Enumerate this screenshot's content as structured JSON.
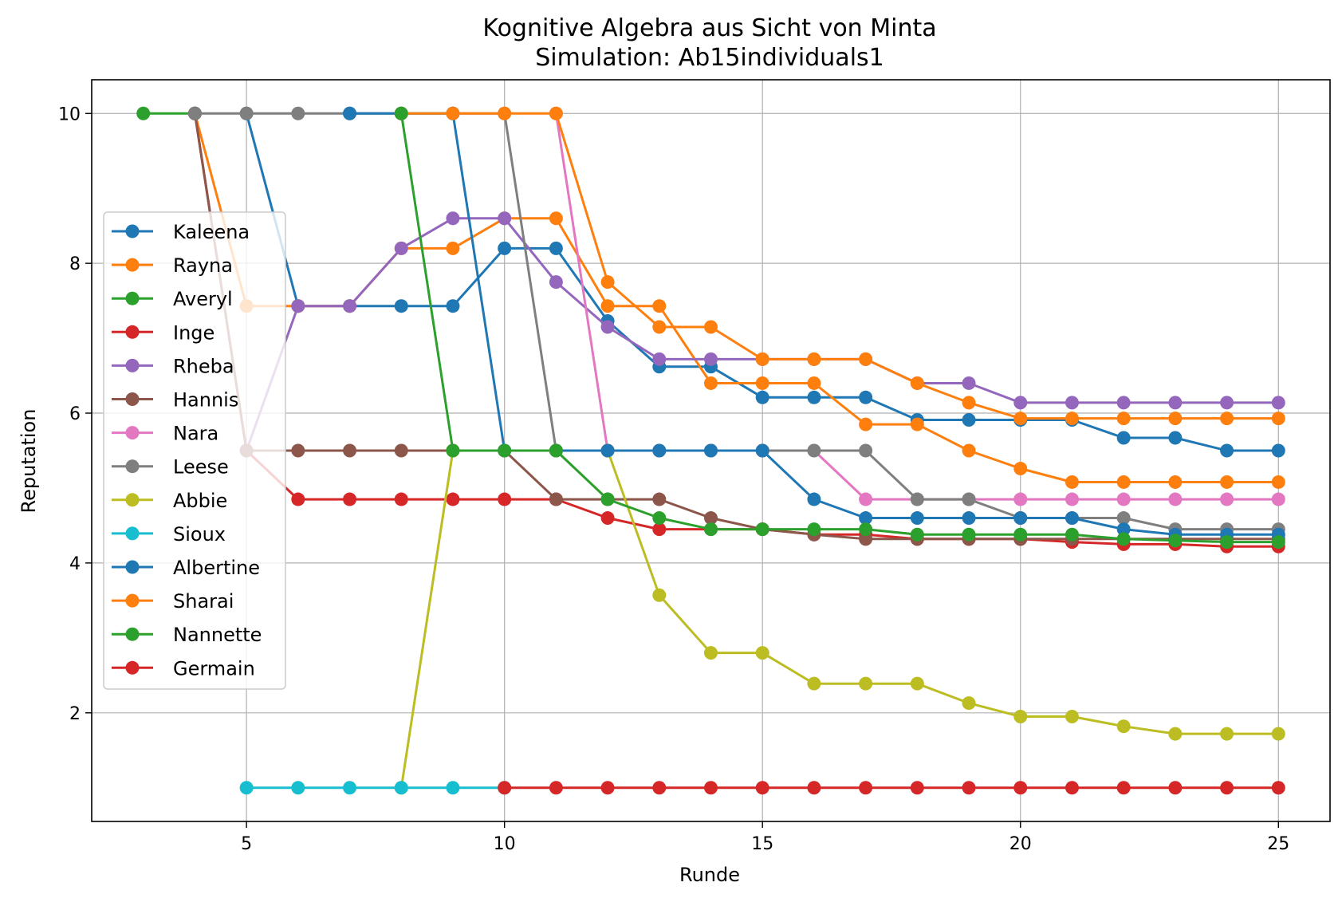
{
  "chart_data": {
    "type": "line",
    "title": "Kognitive Algebra aus Sicht von Minta",
    "subtitle": "Simulation: Ab15individuals1",
    "xlabel": "Runde",
    "ylabel": "Reputation",
    "xlim": [
      2,
      26
    ],
    "ylim": [
      0.55,
      10.45
    ],
    "xticks": [
      5,
      10,
      15,
      20,
      25
    ],
    "yticks": [
      2,
      4,
      6,
      8,
      10
    ],
    "grid": true,
    "legend_position": "center-left",
    "series": [
      {
        "name": "Kaleena",
        "color": "#1f77b4",
        "x": [
          5,
          6,
          7,
          8,
          9,
          10,
          11,
          12,
          13,
          14,
          15,
          16,
          17,
          18,
          19,
          20,
          21,
          22,
          23,
          24,
          25
        ],
        "y": [
          10,
          7.43,
          7.43,
          7.43,
          7.43,
          8.2,
          8.2,
          7.23,
          6.62,
          6.62,
          6.21,
          6.21,
          6.21,
          5.91,
          5.91,
          5.91,
          5.91,
          5.67,
          5.67,
          5.5,
          5.5
        ]
      },
      {
        "name": "Rayna",
        "color": "#ff7f0e",
        "x": [
          4,
          5,
          6,
          7,
          8,
          9,
          10,
          11,
          12,
          13,
          14,
          15,
          16,
          17,
          18,
          19,
          20,
          21,
          22,
          23,
          24,
          25
        ],
        "y": [
          10,
          7.43,
          7.43,
          7.43,
          8.2,
          8.2,
          8.6,
          8.6,
          7.43,
          7.43,
          6.4,
          6.4,
          6.4,
          5.85,
          5.85,
          5.5,
          5.26,
          5.08,
          5.08,
          5.08,
          5.08,
          5.08
        ]
      },
      {
        "name": "Averyl",
        "color": "#2ca02c",
        "x": [
          3,
          4
        ],
        "y": [
          10,
          10
        ]
      },
      {
        "name": "Inge",
        "color": "#d62728",
        "x": [
          4,
          5,
          6,
          7,
          8,
          9,
          10,
          11,
          12,
          13,
          14,
          15,
          16,
          17,
          18,
          19,
          20,
          21,
          22,
          23,
          24,
          25
        ],
        "y": [
          10,
          5.5,
          4.85,
          4.85,
          4.85,
          4.85,
          4.85,
          4.85,
          4.6,
          4.45,
          4.45,
          4.45,
          4.38,
          4.38,
          4.32,
          4.32,
          4.32,
          4.28,
          4.25,
          4.25,
          4.22,
          4.22
        ]
      },
      {
        "name": "Rheba",
        "color": "#9467bd",
        "x": [
          5,
          6,
          7,
          8,
          9,
          10,
          11,
          12,
          13,
          14,
          15,
          16,
          17,
          18,
          19,
          20,
          21,
          22,
          23,
          24,
          25
        ],
        "y": [
          5.5,
          7.43,
          7.43,
          8.2,
          8.6,
          8.6,
          7.75,
          7.15,
          6.72,
          6.72,
          6.72,
          6.72,
          6.72,
          6.4,
          6.4,
          6.14,
          6.14,
          6.14,
          6.14,
          6.14,
          6.14
        ]
      },
      {
        "name": "Hannis",
        "color": "#8c564b",
        "x": [
          4,
          5,
          6,
          7,
          8,
          9,
          10,
          11,
          12,
          13,
          14,
          15,
          16,
          17,
          18,
          19,
          20,
          21,
          22,
          23,
          24,
          25
        ],
        "y": [
          10,
          5.5,
          5.5,
          5.5,
          5.5,
          5.5,
          5.5,
          4.85,
          4.85,
          4.85,
          4.6,
          4.45,
          4.38,
          4.32,
          4.32,
          4.32,
          4.32,
          4.32,
          4.32,
          4.32,
          4.32,
          4.32
        ]
      },
      {
        "name": "Nara",
        "color": "#e377c2",
        "x": [
          11,
          12,
          13,
          14,
          15,
          16,
          17,
          18,
          19,
          20,
          21,
          22,
          23,
          24,
          25
        ],
        "y": [
          10,
          5.5,
          5.5,
          5.5,
          5.5,
          5.5,
          4.85,
          4.85,
          4.85,
          4.85,
          4.85,
          4.85,
          4.85,
          4.85,
          4.85
        ]
      },
      {
        "name": "Leese",
        "color": "#7f7f7f",
        "x": [
          4,
          5,
          6,
          7,
          8,
          9,
          10,
          11,
          12,
          13,
          14,
          15,
          16,
          17,
          18,
          19,
          20,
          21,
          22,
          23,
          24,
          25
        ],
        "y": [
          10,
          10,
          10,
          10,
          10,
          10,
          10,
          5.5,
          5.5,
          5.5,
          5.5,
          5.5,
          5.5,
          5.5,
          4.85,
          4.85,
          4.6,
          4.6,
          4.6,
          4.45,
          4.45,
          4.45
        ]
      },
      {
        "name": "Abbie",
        "color": "#bcbd22",
        "x": [
          8,
          9,
          10,
          11,
          12,
          13,
          14,
          15,
          16,
          17,
          18,
          19,
          20,
          21,
          22,
          23,
          24,
          25
        ],
        "y": [
          1,
          5.5,
          5.5,
          5.5,
          5.5,
          3.57,
          2.8,
          2.8,
          2.39,
          2.39,
          2.39,
          2.13,
          1.95,
          1.95,
          1.82,
          1.72,
          1.72,
          1.72
        ]
      },
      {
        "name": "Sioux",
        "color": "#17becf",
        "x": [
          5,
          6,
          7,
          8,
          9,
          10
        ],
        "y": [
          1,
          1,
          1,
          1,
          1,
          1
        ]
      },
      {
        "name": "Albertine",
        "color": "#1f77b4",
        "x": [
          7,
          8,
          9,
          10,
          11,
          12,
          13,
          14,
          15,
          16,
          17,
          18,
          19,
          20,
          21,
          22,
          23,
          24,
          25
        ],
        "y": [
          10,
          10,
          10,
          5.5,
          5.5,
          5.5,
          5.5,
          5.5,
          5.5,
          4.85,
          4.6,
          4.6,
          4.6,
          4.6,
          4.6,
          4.45,
          4.38,
          4.38,
          4.38
        ]
      },
      {
        "name": "Sharai",
        "color": "#ff7f0e",
        "x": [
          8,
          9,
          10,
          11,
          12,
          13,
          14,
          15,
          16,
          17,
          18,
          19,
          20,
          21,
          22,
          23,
          24,
          25
        ],
        "y": [
          10,
          10,
          10,
          10,
          7.75,
          7.15,
          7.15,
          6.72,
          6.72,
          6.72,
          6.4,
          6.14,
          5.93,
          5.93,
          5.93,
          5.93,
          5.93,
          5.93
        ]
      },
      {
        "name": "Nannette",
        "color": "#2ca02c",
        "x": [
          8,
          9,
          10,
          11,
          12,
          13,
          14,
          15,
          16,
          17,
          18,
          19,
          20,
          21,
          22,
          23,
          24,
          25
        ],
        "y": [
          10,
          5.5,
          5.5,
          5.5,
          4.85,
          4.6,
          4.45,
          4.45,
          4.45,
          4.45,
          4.38,
          4.38,
          4.38,
          4.38,
          4.32,
          4.3,
          4.28,
          4.28
        ]
      },
      {
        "name": "Germain",
        "color": "#d62728",
        "x": [
          10,
          11,
          12,
          13,
          14,
          15,
          16,
          17,
          18,
          19,
          20,
          21,
          22,
          23,
          24,
          25
        ],
        "y": [
          1,
          1,
          1,
          1,
          1,
          1,
          1,
          1,
          1,
          1,
          1,
          1,
          1,
          1,
          1,
          1
        ]
      }
    ]
  }
}
